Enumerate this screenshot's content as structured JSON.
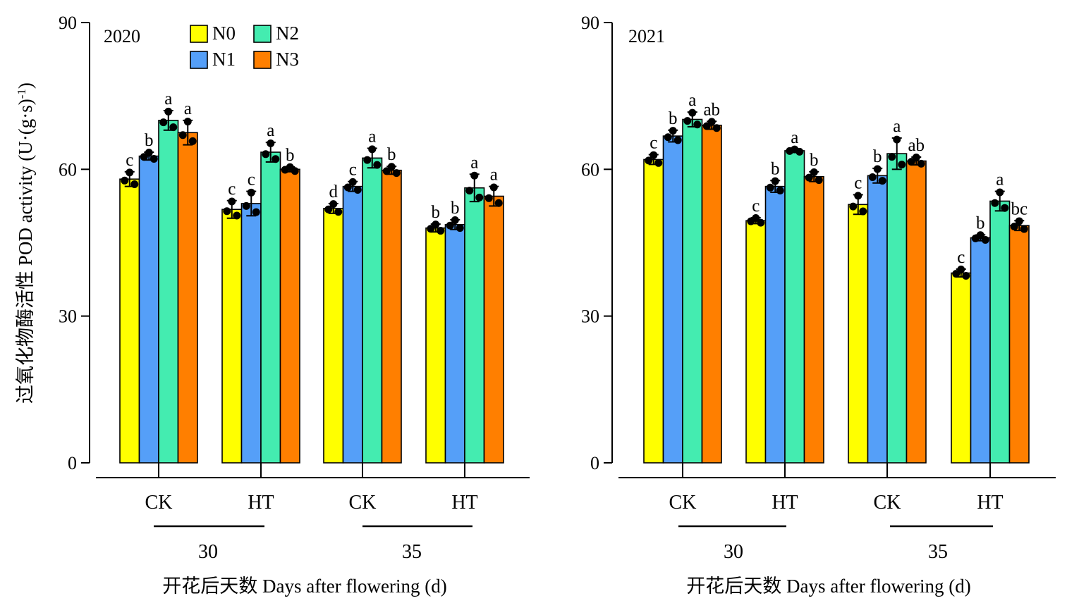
{
  "y_axis_title": "过氧化物酶活性 POD activity (U·(g·s)-1)",
  "x_axis_title": "开花后天数 Days after flowering (d)",
  "legend": [
    "N0",
    "N1",
    "N2",
    "N3"
  ],
  "colors": {
    "N0": "#ffff00",
    "N1": "#559ff8",
    "N2": "#44ecb0",
    "N3": "#ff7f00"
  },
  "chart_data": [
    {
      "type": "bar",
      "title": "2020",
      "ylim": [
        0,
        90
      ],
      "yticks": [
        0,
        30,
        60,
        90
      ],
      "grid": false,
      "legend_position": "top-left",
      "groups": [
        "30",
        "35"
      ],
      "categories": [
        "CK",
        "HT",
        "CK",
        "HT"
      ],
      "series": [
        {
          "name": "N0",
          "values": [
            58,
            51.8,
            52,
            48
          ],
          "errors": [
            1.5,
            1.8,
            1.0,
            0.8
          ],
          "labels": [
            "c",
            "c",
            "d",
            "b"
          ]
        },
        {
          "name": "N1",
          "values": [
            62.7,
            53,
            56.5,
            48.7
          ],
          "errors": [
            0.8,
            2.5,
            1.0,
            1.0
          ],
          "labels": [
            "b",
            "c",
            "c",
            "b"
          ]
        },
        {
          "name": "N2",
          "values": [
            70,
            63.5,
            62.3,
            56.2
          ],
          "errors": [
            2.0,
            2.0,
            2.0,
            2.8
          ],
          "labels": [
            "a",
            "a",
            "a",
            "a"
          ]
        },
        {
          "name": "N3",
          "values": [
            67.5,
            60,
            59.8,
            54.5
          ],
          "errors": [
            2.5,
            0.5,
            0.8,
            2.0
          ],
          "labels": [
            "a",
            "b",
            "b",
            "a"
          ]
        }
      ]
    },
    {
      "type": "bar",
      "title": "2021",
      "ylim": [
        0,
        90
      ],
      "yticks": [
        0,
        30,
        60,
        90
      ],
      "grid": false,
      "groups": [
        "30",
        "35"
      ],
      "categories": [
        "CK",
        "HT",
        "CK",
        "HT"
      ],
      "series": [
        {
          "name": "N0",
          "values": [
            62,
            49.5,
            52.8,
            38.8
          ],
          "errors": [
            1.0,
            0.6,
            2.0,
            0.8
          ],
          "labels": [
            "c",
            "c",
            "c",
            "c"
          ]
        },
        {
          "name": "N1",
          "values": [
            66.8,
            56.5,
            58.7,
            46
          ],
          "errors": [
            1.2,
            1.2,
            1.5,
            0.6
          ],
          "labels": [
            "b",
            "b",
            "b",
            "b"
          ]
        },
        {
          "name": "N2",
          "values": [
            70.2,
            63.8,
            63.2,
            53.5
          ],
          "errors": [
            1.5,
            0.3,
            3.2,
            2.0
          ],
          "labels": [
            "a",
            "a",
            "a",
            "a"
          ]
        },
        {
          "name": "N3",
          "values": [
            69,
            58.5,
            61.7,
            48.5
          ],
          "errors": [
            0.8,
            1.0,
            0.8,
            1.0
          ],
          "labels": [
            "ab",
            "b",
            "ab",
            "bc"
          ]
        }
      ]
    }
  ]
}
